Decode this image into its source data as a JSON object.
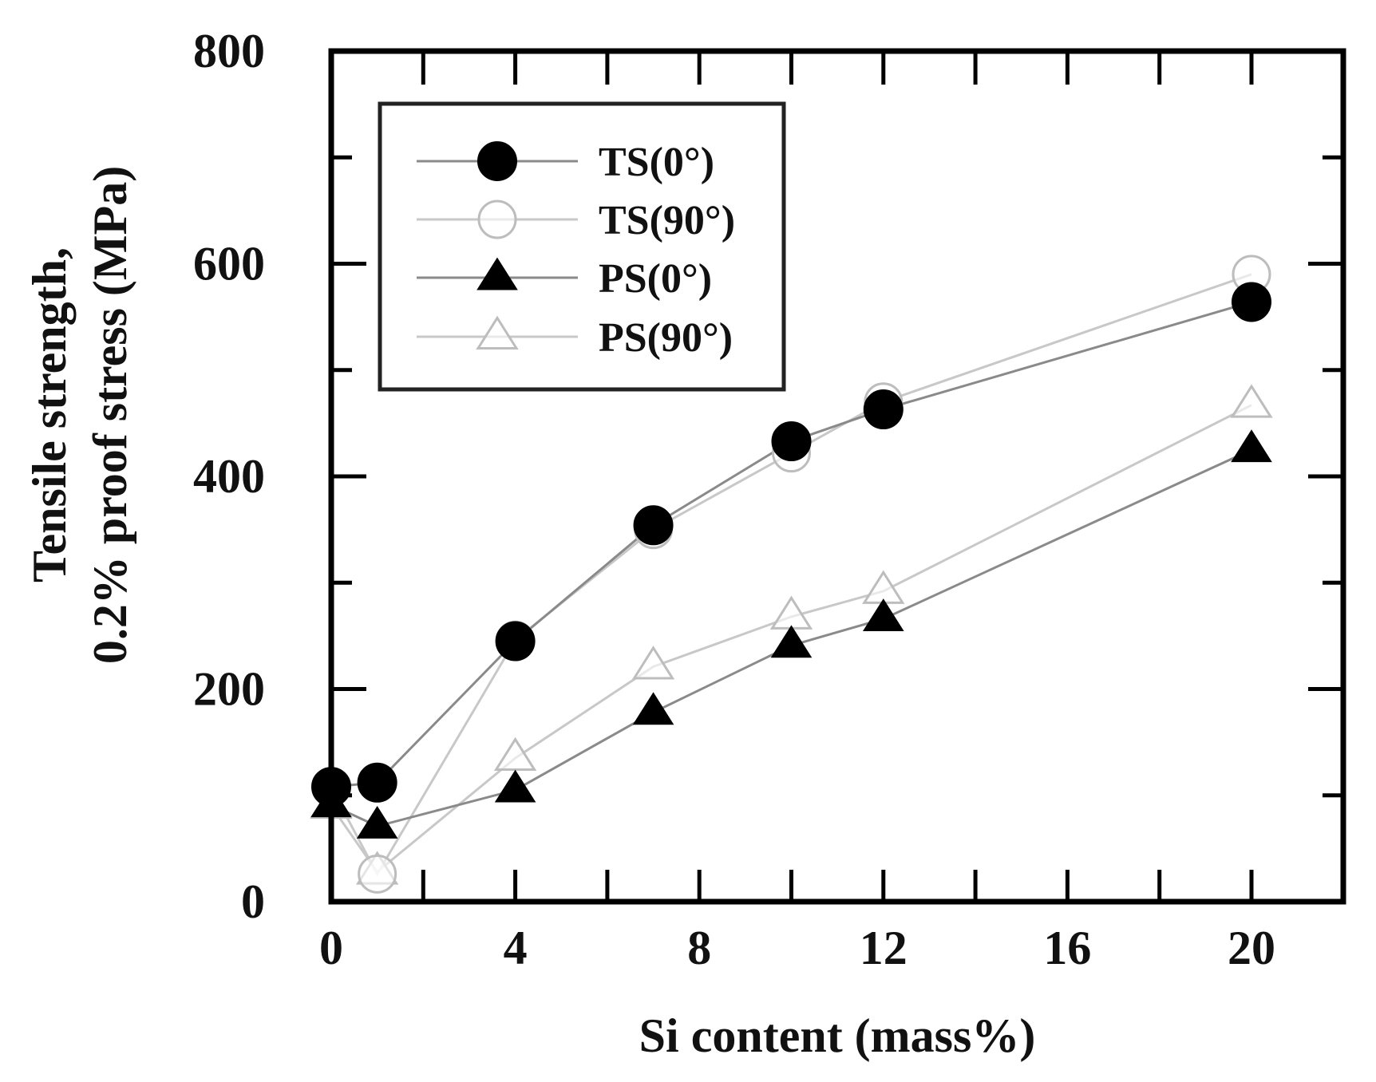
{
  "chart_data": {
    "type": "line",
    "title": "",
    "xlabel": "Si content (mass%)",
    "ylabel": [
      "Tensile strength,",
      "0.2% proof stress (MPa)"
    ],
    "xlim": [
      0,
      22
    ],
    "ylim": [
      0,
      800
    ],
    "xticks": [
      0,
      4,
      8,
      12,
      16,
      20
    ],
    "xticks_minor": [
      2,
      6,
      10,
      14,
      18
    ],
    "yticks": [
      0,
      200,
      400,
      600,
      800
    ],
    "yticks_minor": [
      100,
      300,
      500,
      700
    ],
    "grid": false,
    "legend_position": "upper left (inside)",
    "x": [
      0,
      1,
      4,
      7,
      10,
      12,
      20
    ],
    "series": [
      {
        "name": "TS(0°)",
        "marker": "filled-circle",
        "line_color": "#8a8a8a",
        "values": [
          108,
          112,
          245,
          354,
          433,
          463,
          564
        ]
      },
      {
        "name": "TS(90°)",
        "marker": "open-circle",
        "line_color": "#c8c8c8",
        "values": [
          107,
          26,
          246,
          350,
          422,
          470,
          590
        ]
      },
      {
        "name": "PS(0°)",
        "marker": "filled-triangle",
        "line_color": "#8a8a8a",
        "values": [
          91,
          71,
          105,
          178,
          241,
          266,
          425
        ]
      },
      {
        "name": "PS(90°)",
        "marker": "open-triangle",
        "line_color": "#c8c8c8",
        "values": [
          90,
          28,
          135,
          221,
          268,
          292,
          467
        ]
      }
    ]
  }
}
